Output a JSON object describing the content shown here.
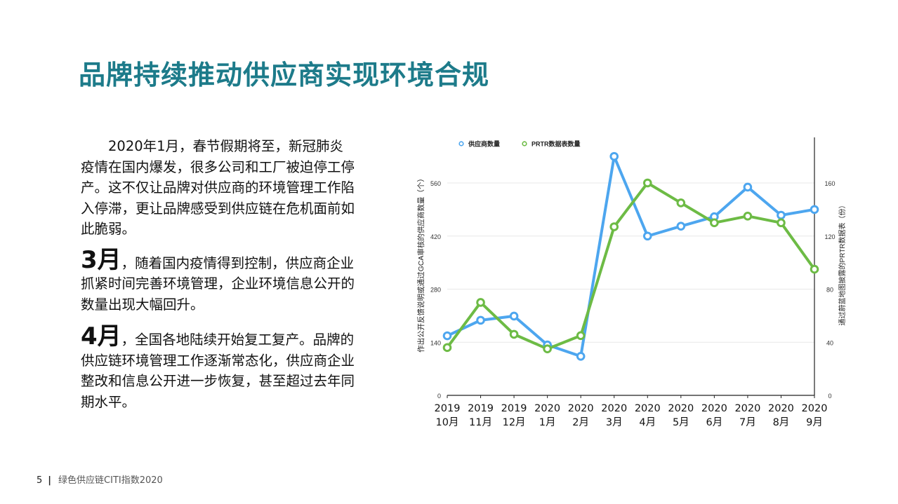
{
  "page": {
    "title": "品牌持续推动供应商实现环境合规",
    "footer": {
      "page_number": "5",
      "separator": "|",
      "publication": "绿色供应链CITI指数2020"
    }
  },
  "text": {
    "para1": "2020年1月，春节假期将至，新冠肺炎疫情在国内爆发，很多公司和工厂被迫停工停产。这不仅让品牌对供应商的环境管理工作陷入停滞，更让品牌感受到供应链在危机面前如此脆弱。",
    "para2_month": "3月",
    "para2_body": "，随着国内疫情得到控制，供应商企业抓紧时间完善环境管理，企业环境信息公开的数量出现大幅回升。",
    "para3_month": "4月",
    "para3_body": "，全国各地陆续开始复工复产。品牌的供应链环境管理工作逐渐常态化，供应商企业整改和信息公开进一步恢复，甚至超过去年同期水平。"
  },
  "chart_data": {
    "type": "line",
    "title": "",
    "categories": [
      "2019 10月",
      "2019 11月",
      "2019 12月",
      "2020 1月",
      "2020 2月",
      "2020 3月",
      "2020 4月",
      "2020 5月",
      "2020 6月",
      "2020 7月",
      "2020 8月",
      "2020 9月"
    ],
    "x_tick_years": [
      "2019",
      "2019",
      "2019",
      "2020",
      "2020",
      "2020",
      "2020",
      "2020",
      "2020",
      "2020",
      "2020",
      "2020"
    ],
    "x_tick_months": [
      "10月",
      "11月",
      "12月",
      "1月",
      "2月",
      "3月",
      "4月",
      "5月",
      "6月",
      "7月",
      "8月",
      "9月"
    ],
    "series": [
      {
        "name": "供应商数量",
        "axis": "left",
        "color": "#4da6ef",
        "values": [
          157,
          198,
          209,
          133,
          103,
          630,
          420,
          446,
          471,
          549,
          475,
          490
        ]
      },
      {
        "name": "PRTR数据表数量",
        "axis": "right",
        "color": "#6dbb45",
        "values": [
          36,
          70,
          46,
          35,
          45,
          127,
          160,
          145,
          130,
          135,
          130,
          95
        ]
      }
    ],
    "ylabel": "作出公开反馈说明或通过GCA审核的供应商数量（个）",
    "ylabel_right": "通过蔚蓝地图披露的PRTR数据表（份）",
    "ylim": [
      0,
      560
    ],
    "ylim_right": [
      0,
      160
    ],
    "yticks": [
      "0",
      "140",
      "280",
      "420",
      "560"
    ],
    "yticks_right": [
      "0",
      "40",
      "80",
      "120",
      "160"
    ],
    "grid": true,
    "legend_position": "top-left"
  }
}
